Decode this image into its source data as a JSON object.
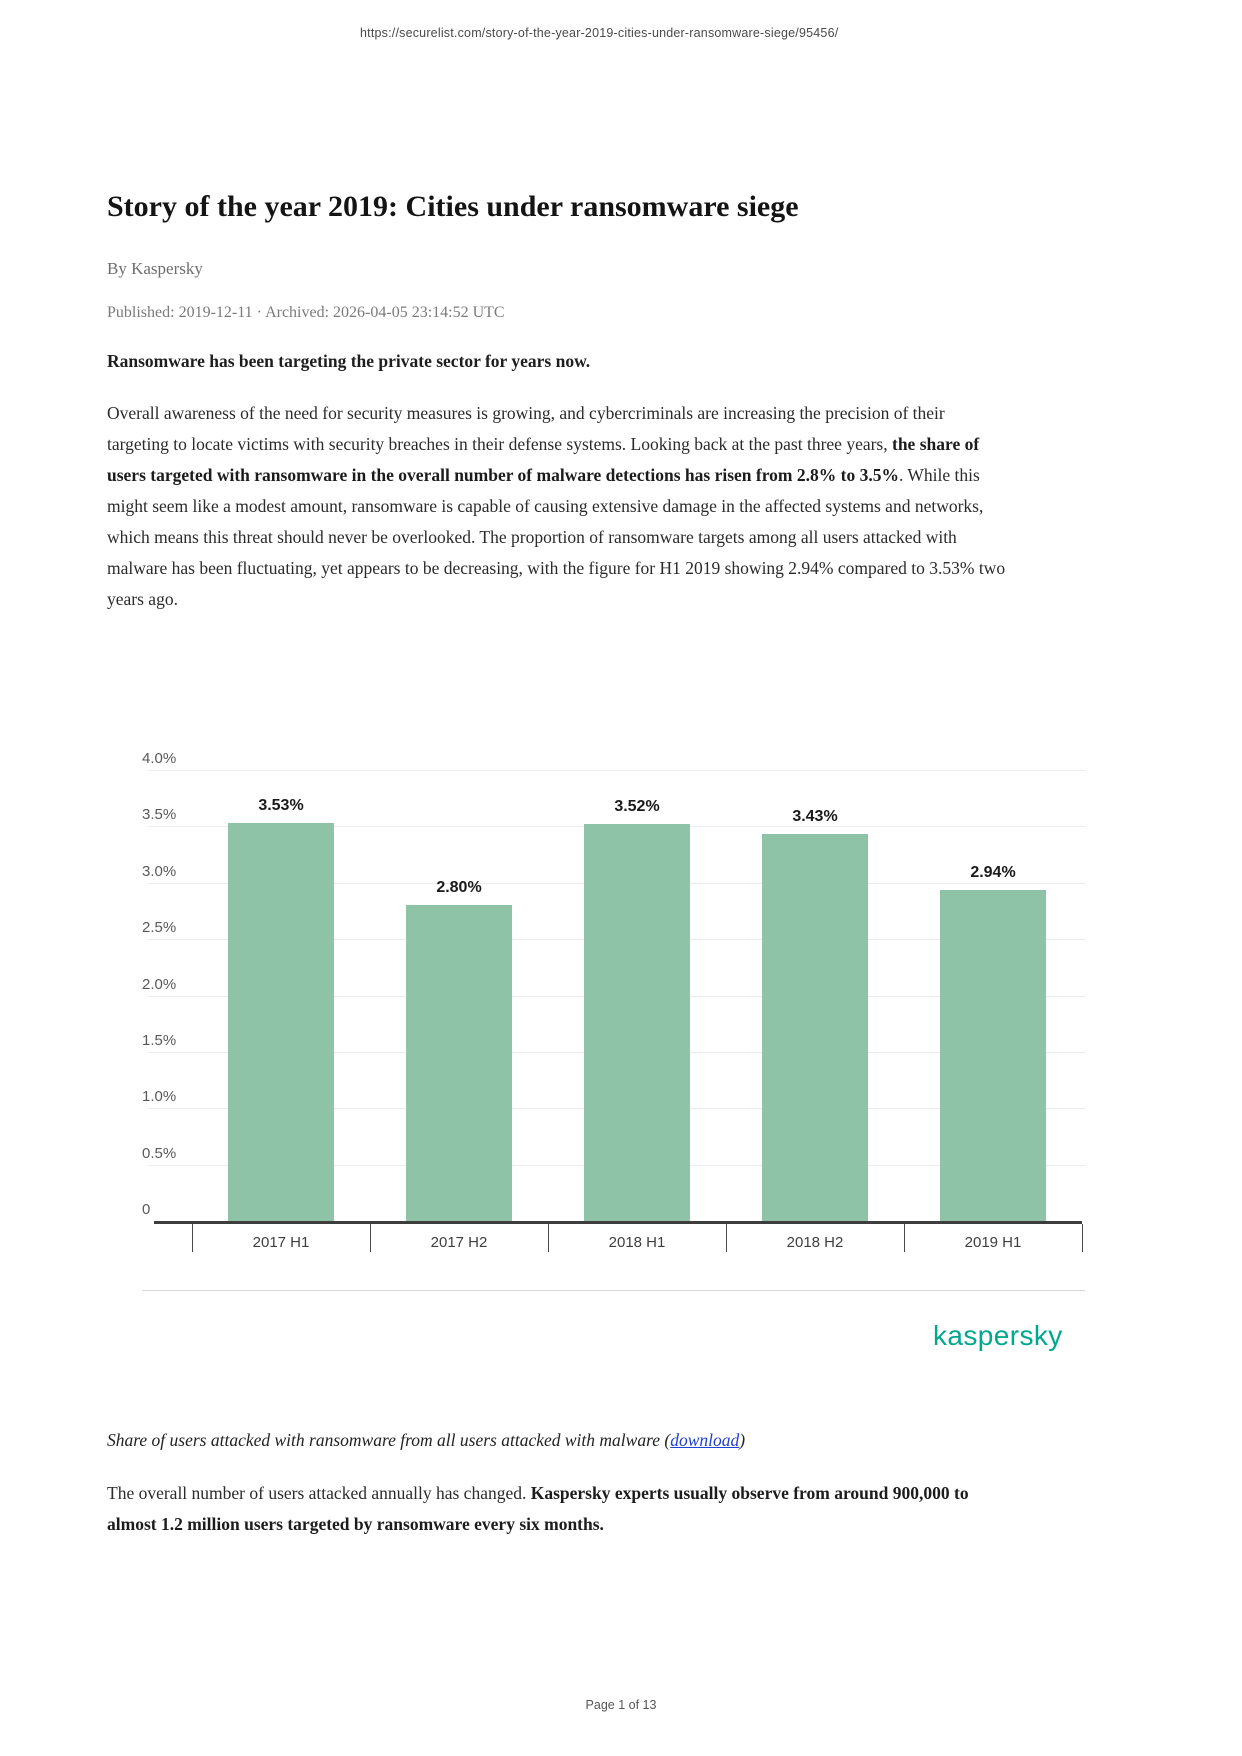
{
  "page": {
    "url_header": "https://securelist.com/story-of-the-year-2019-cities-under-ransomware-siege/95456/",
    "footer": "Page 1 of 13"
  },
  "article": {
    "title": "Story of the year 2019: Cities under ransomware siege",
    "byline": "By Kaspersky",
    "published_line": "Published: 2019-12-11 · Archived: 2026-04-05 23:14:52 UTC",
    "lede_bold": "Ransomware has been targeting the private sector for years now.",
    "para1_part1": "Overall awareness of the need for security measures is growing, and cybercriminals are increasing the precision of their targeting to locate victims with security breaches in their defense systems. Looking back at the past three years, ",
    "para1_bold": "the share of users targeted with ransomware in the overall number of malware detections has risen from 2.8% to 3.5%",
    "para1_part2": ". While this might seem like a modest amount, ransomware is capable of causing extensive damage in the affected systems and networks, which means this threat should never be overlooked. The proportion of ransomware targets among all users attacked with malware has been fluctuating, yet appears to be decreasing, with the figure for H1 2019 showing 2.94% compared to 3.53% two years ago.",
    "caption_text": "Share of users attacked with ransomware from all users attacked with malware (",
    "caption_link": "download",
    "caption_close": ")",
    "para2_part1": "The overall number of users attacked annually has changed. ",
    "para2_bold": "Kaspersky experts usually observe from around 900,000 to almost 1.2 million users targeted by ransomware every six months."
  },
  "chart_data": {
    "type": "bar",
    "title": "",
    "categories": [
      "2017 H1",
      "2017 H2",
      "2018 H1",
      "2018 H2",
      "2019 H1"
    ],
    "values": [
      3.53,
      2.8,
      3.52,
      3.43,
      2.94
    ],
    "value_labels": [
      "3.53%",
      "2.80%",
      "3.52%",
      "3.43%",
      "2.94%"
    ],
    "y_tick_labels": [
      "4.0%",
      "3.5%",
      "3.0%",
      "2.5%",
      "2.0%",
      "1.5%",
      "1.0%",
      "0.5%",
      "0"
    ],
    "y_tick_values": [
      4.0,
      3.5,
      3.0,
      2.5,
      2.0,
      1.5,
      1.0,
      0.5,
      0
    ],
    "ylim": [
      0,
      4
    ],
    "xlabel": "",
    "ylabel": "",
    "grid": true,
    "legend_position": "none",
    "bar_color": "#8FC3A7",
    "brand_label": "kaspersky",
    "brand_color": "#00A88E"
  }
}
